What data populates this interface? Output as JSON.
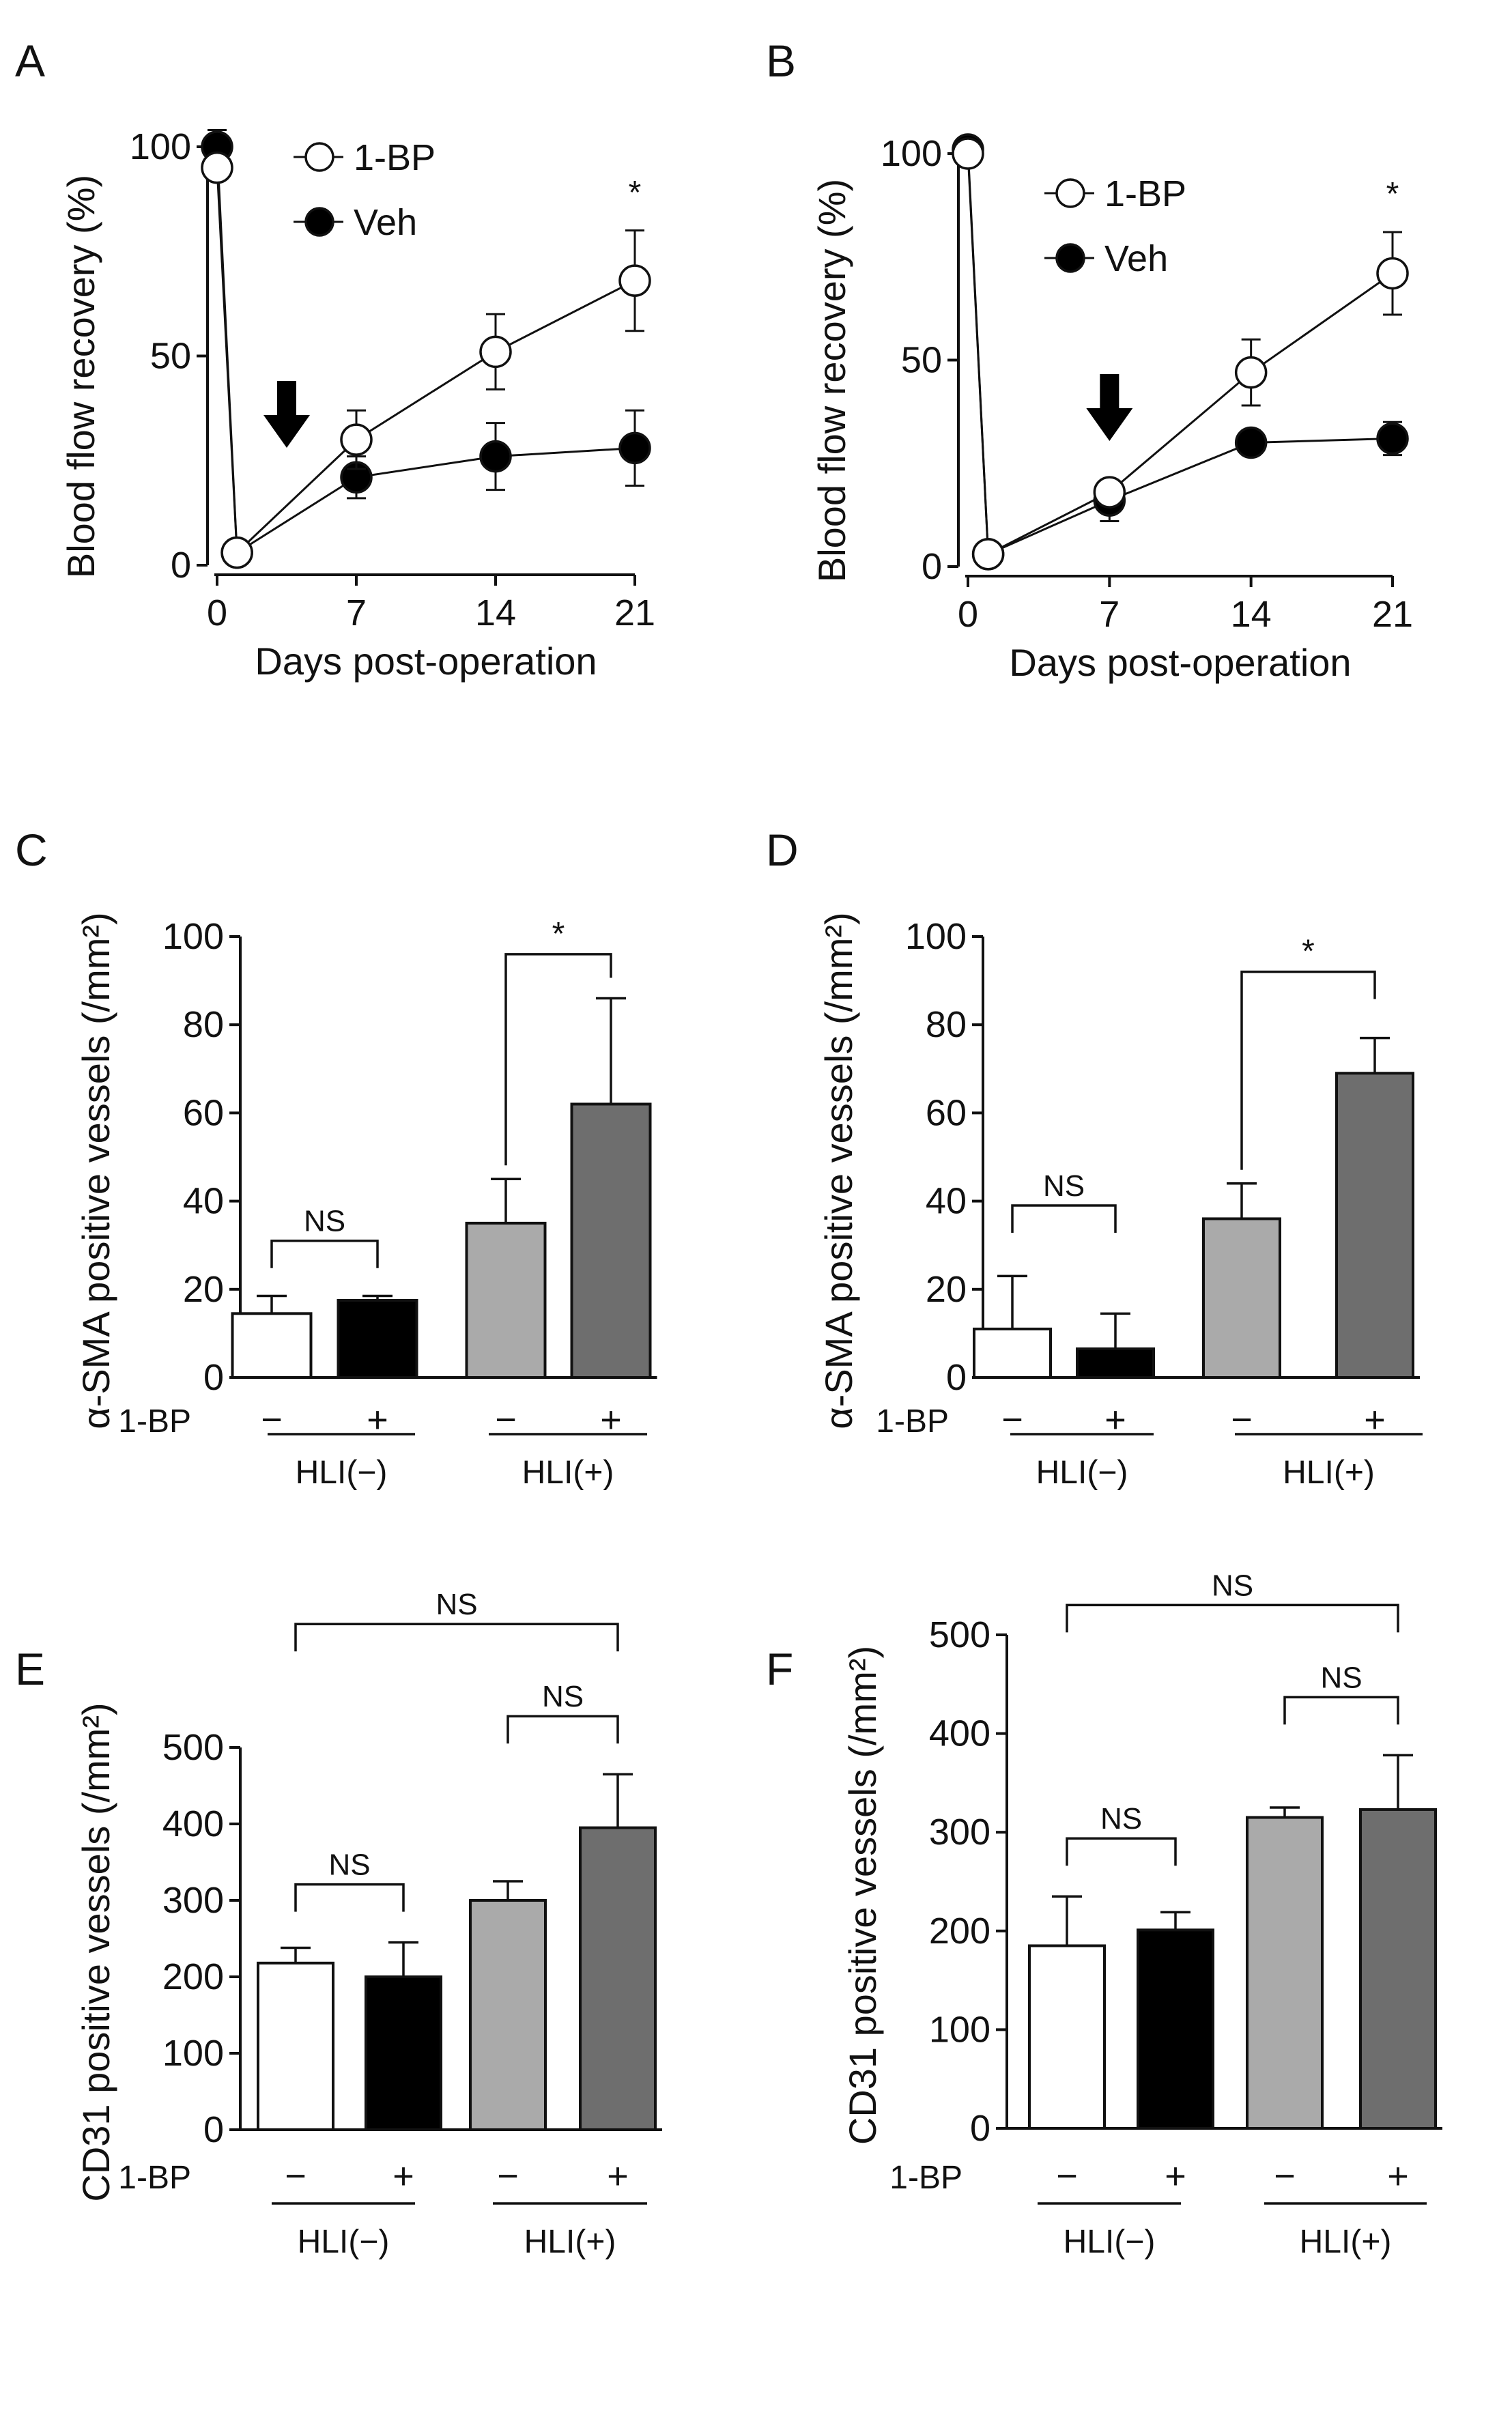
{
  "chart_data": [
    {
      "panel": "A",
      "type": "line",
      "xlabel": "Days post-operation",
      "ylabel": "Blood flow recovery (%)",
      "xlim": [
        0,
        21
      ],
      "ylim": [
        0,
        100
      ],
      "xticks": [
        0,
        7,
        14,
        21
      ],
      "yticks": [
        0,
        50,
        100
      ],
      "series": [
        {
          "name": "1-BP",
          "marker": "open-circle",
          "x": [
            0,
            1,
            7,
            14,
            21
          ],
          "values": [
            95,
            3,
            30,
            51,
            68
          ],
          "errors": [
            0,
            0,
            7,
            9,
            12
          ]
        },
        {
          "name": "Veh",
          "marker": "filled-circle",
          "x": [
            0,
            1,
            7,
            14,
            21
          ],
          "values": [
            100,
            3,
            21,
            26,
            28
          ],
          "errors": [
            4,
            0,
            5,
            8,
            9
          ]
        }
      ],
      "arrow_day": 3.5,
      "annotations": [
        {
          "x": 21,
          "text": "*"
        }
      ]
    },
    {
      "panel": "B",
      "type": "line",
      "xlabel": "Days post-operation",
      "ylabel": "Blood flow recovery (%)",
      "xlim": [
        0,
        21
      ],
      "ylim": [
        0,
        100
      ],
      "xticks": [
        0,
        7,
        14,
        21
      ],
      "yticks": [
        0,
        50,
        100
      ],
      "series": [
        {
          "name": "1-BP",
          "marker": "open-circle",
          "x": [
            0,
            1,
            7,
            14,
            21
          ],
          "values": [
            100,
            3,
            18,
            47,
            71
          ],
          "errors": [
            0,
            0,
            3,
            8,
            10
          ]
        },
        {
          "name": "Veh",
          "marker": "filled-circle",
          "x": [
            0,
            1,
            7,
            14,
            21
          ],
          "values": [
            101,
            3,
            16,
            30,
            31
          ],
          "errors": [
            0,
            0,
            5,
            3,
            4
          ]
        }
      ],
      "arrow_day": 7,
      "annotations": [
        {
          "x": 21,
          "text": "*"
        }
      ]
    },
    {
      "panel": "C",
      "type": "bar",
      "ylabel": "α-SMA positive vessels (/mm²)",
      "ylim": [
        0,
        100
      ],
      "yticks": [
        0,
        20,
        40,
        60,
        80,
        100
      ],
      "treatment_label": "1-BP",
      "treatments": [
        "−",
        "+",
        "−",
        "+"
      ],
      "groups": [
        "HLI(−)",
        "HLI(+)"
      ],
      "values": [
        14.5,
        17.5,
        35,
        62
      ],
      "errors": [
        4,
        1,
        10,
        24
      ],
      "colors": [
        "#ffffff",
        "#000000",
        "#aaaaaa",
        "#6e6e6e"
      ],
      "comparisons": [
        {
          "a": 0,
          "b": 1,
          "text": "NS"
        },
        {
          "a": 2,
          "b": 3,
          "text": "*"
        }
      ]
    },
    {
      "panel": "D",
      "type": "bar",
      "ylabel": "α-SMA positive vessels (/mm²)",
      "ylim": [
        0,
        100
      ],
      "yticks": [
        0,
        20,
        40,
        60,
        80,
        100
      ],
      "treatment_label": "1-BP",
      "treatments": [
        "−",
        "+",
        "−",
        "+"
      ],
      "groups": [
        "HLI(−)",
        "HLI(+)"
      ],
      "values": [
        11,
        6.5,
        36,
        69
      ],
      "errors": [
        12,
        8,
        8,
        8
      ],
      "colors": [
        "#ffffff",
        "#000000",
        "#aaaaaa",
        "#6e6e6e"
      ],
      "comparisons": [
        {
          "a": 0,
          "b": 1,
          "text": "NS"
        },
        {
          "a": 2,
          "b": 3,
          "text": "*"
        }
      ]
    },
    {
      "panel": "E",
      "type": "bar",
      "ylabel": "CD31 positive vessels (/mm²)",
      "ylim": [
        0,
        500
      ],
      "yticks": [
        0,
        100,
        200,
        300,
        400,
        500
      ],
      "treatment_label": "1-BP",
      "treatments": [
        "−",
        "+",
        "−",
        "+"
      ],
      "groups": [
        "HLI(−)",
        "HLI(+)"
      ],
      "values": [
        218,
        200,
        300,
        395
      ],
      "errors": [
        20,
        45,
        25,
        70
      ],
      "colors": [
        "#ffffff",
        "#000000",
        "#aaaaaa",
        "#6e6e6e"
      ],
      "comparisons": [
        {
          "a": 0,
          "b": 1,
          "text": "NS"
        },
        {
          "a": 2,
          "b": 3,
          "text": "NS"
        },
        {
          "a": 0,
          "b": 3,
          "text": "NS"
        }
      ]
    },
    {
      "panel": "F",
      "type": "bar",
      "ylabel": "CD31 positive vessels (/mm²)",
      "ylim": [
        0,
        500
      ],
      "yticks": [
        0,
        100,
        200,
        300,
        400,
        500
      ],
      "treatment_label": "1-BP",
      "treatments": [
        "−",
        "+",
        "−",
        "+"
      ],
      "groups": [
        "HLI(−)",
        "HLI(+)"
      ],
      "values": [
        185,
        201,
        315,
        323
      ],
      "errors": [
        50,
        18,
        10,
        55
      ],
      "colors": [
        "#ffffff",
        "#000000",
        "#aaaaaa",
        "#6e6e6e"
      ],
      "comparisons": [
        {
          "a": 0,
          "b": 1,
          "text": "NS"
        },
        {
          "a": 2,
          "b": 3,
          "text": "NS"
        },
        {
          "a": 0,
          "b": 3,
          "text": "NS"
        }
      ]
    }
  ]
}
